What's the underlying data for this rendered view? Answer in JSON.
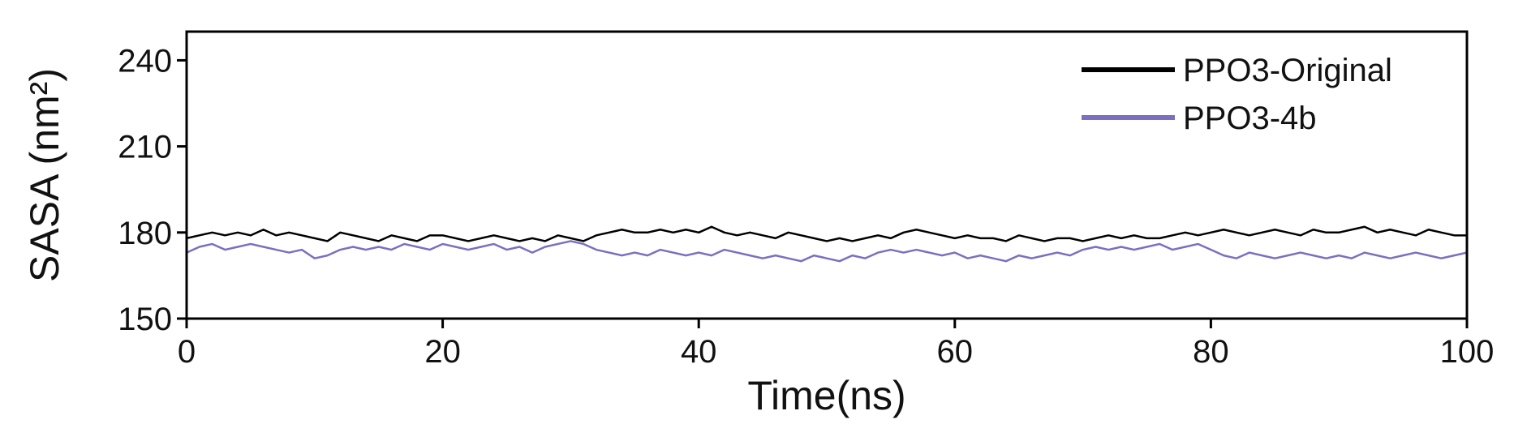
{
  "chart_data": {
    "type": "line",
    "xlabel": "Time(ns)",
    "ylabel": "SASA (nm²)",
    "x": [
      0,
      1,
      2,
      3,
      4,
      5,
      6,
      7,
      8,
      9,
      10,
      11,
      12,
      13,
      14,
      15,
      16,
      17,
      18,
      19,
      20,
      21,
      22,
      23,
      24,
      25,
      26,
      27,
      28,
      29,
      30,
      31,
      32,
      33,
      34,
      35,
      36,
      37,
      38,
      39,
      40,
      41,
      42,
      43,
      44,
      45,
      46,
      47,
      48,
      49,
      50,
      51,
      52,
      53,
      54,
      55,
      56,
      57,
      58,
      59,
      60,
      61,
      62,
      63,
      64,
      65,
      66,
      67,
      68,
      69,
      70,
      71,
      72,
      73,
      74,
      75,
      76,
      77,
      78,
      79,
      80,
      81,
      82,
      83,
      84,
      85,
      86,
      87,
      88,
      89,
      90,
      91,
      92,
      93,
      94,
      95,
      96,
      97,
      98,
      99,
      100
    ],
    "series": [
      {
        "name": "PPO3-Original",
        "color": "#000000",
        "values": [
          178,
          179,
          180,
          179,
          180,
          179,
          181,
          179,
          180,
          179,
          178,
          177,
          180,
          179,
          178,
          177,
          179,
          178,
          177,
          179,
          179,
          178,
          177,
          178,
          179,
          178,
          177,
          178,
          177,
          179,
          178,
          177,
          179,
          180,
          181,
          180,
          180,
          181,
          180,
          181,
          180,
          182,
          180,
          179,
          180,
          179,
          178,
          180,
          179,
          178,
          177,
          178,
          177,
          178,
          179,
          178,
          180,
          181,
          180,
          179,
          178,
          179,
          178,
          178,
          177,
          179,
          178,
          177,
          178,
          178,
          177,
          178,
          179,
          178,
          179,
          178,
          178,
          179,
          180,
          179,
          180,
          181,
          180,
          179,
          180,
          181,
          180,
          179,
          181,
          180,
          180,
          181,
          182,
          180,
          181,
          180,
          179,
          181,
          180,
          179,
          179
        ]
      },
      {
        "name": "PPO3-4b",
        "color": "#7b6fc0",
        "values": [
          173,
          175,
          176,
          174,
          175,
          176,
          175,
          174,
          173,
          174,
          171,
          172,
          174,
          175,
          174,
          175,
          174,
          176,
          175,
          174,
          176,
          175,
          174,
          175,
          176,
          174,
          175,
          173,
          175,
          176,
          177,
          176,
          174,
          173,
          172,
          173,
          172,
          174,
          173,
          172,
          173,
          172,
          174,
          173,
          172,
          171,
          172,
          171,
          170,
          172,
          171,
          170,
          172,
          171,
          173,
          174,
          173,
          174,
          173,
          172,
          173,
          171,
          172,
          171,
          170,
          172,
          171,
          172,
          173,
          172,
          174,
          175,
          174,
          175,
          174,
          175,
          176,
          174,
          175,
          176,
          174,
          172,
          171,
          173,
          172,
          171,
          172,
          173,
          172,
          171,
          172,
          171,
          173,
          172,
          171,
          172,
          173,
          172,
          171,
          172,
          173
        ]
      }
    ],
    "xlim": [
      0,
      100
    ],
    "xticks": [
      0,
      20,
      40,
      60,
      80,
      100
    ],
    "ylim": [
      150,
      250
    ],
    "yticks": [
      150,
      180,
      210,
      240
    ],
    "legend": "upper right"
  }
}
